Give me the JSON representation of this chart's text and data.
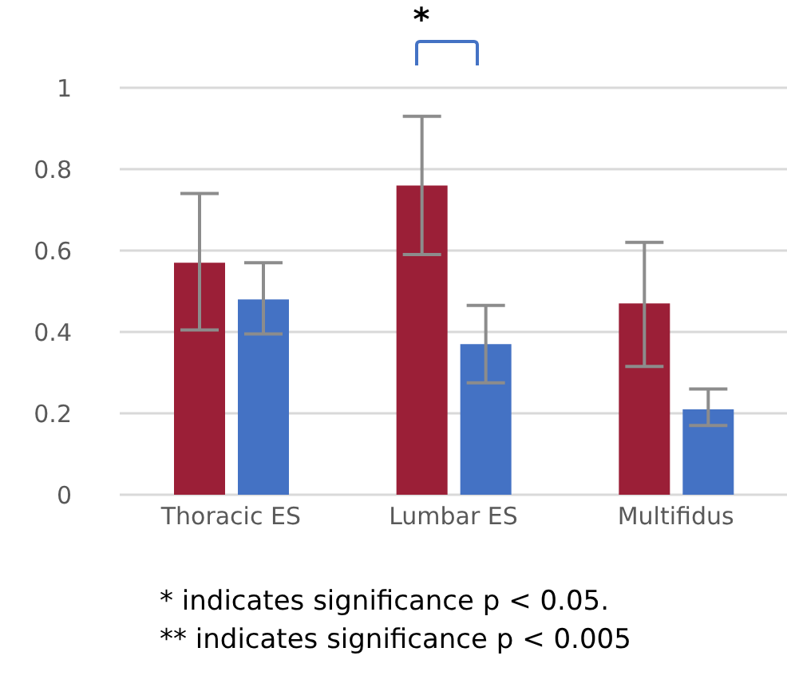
{
  "chart_data": {
    "type": "bar",
    "categories": [
      "Thoracic ES",
      "Lumbar ES",
      "Multifidus"
    ],
    "series": [
      {
        "color": "#9b1f37",
        "values": [
          0.57,
          0.76,
          0.47
        ],
        "errors": [
          [
            0.405,
            0.74
          ],
          [
            0.59,
            0.93
          ],
          [
            0.315,
            0.62
          ]
        ]
      },
      {
        "color": "#4472c4",
        "values": [
          0.48,
          0.37,
          0.21
        ],
        "errors": [
          [
            0.395,
            0.57
          ],
          [
            0.275,
            0.465
          ],
          [
            0.17,
            0.26
          ]
        ]
      }
    ],
    "ylim": [
      0,
      1
    ],
    "yticks": [
      0,
      0.2,
      0.4,
      0.6,
      0.8,
      1
    ],
    "grid": "y",
    "legend": false,
    "annotations": [
      "*",
      "* indicates significance p < 0.05.",
      "** indicates significance p < 0.005"
    ]
  }
}
